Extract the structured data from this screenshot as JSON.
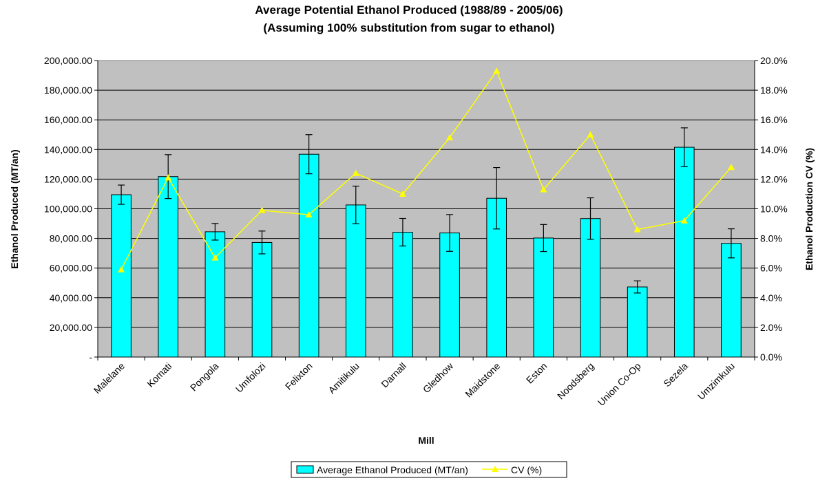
{
  "chart_data": {
    "type": "bar",
    "title": "Average Potential Ethanol Produced (1988/89 - 2005/06)",
    "subtitle": "(Assuming 100% substitution from sugar to ethanol)",
    "xlabel": "Mill",
    "ylabel": "Ethanol Produced (MT/an)",
    "y2label": "Ethanol Production CV (%)",
    "ylim": [
      0,
      200000
    ],
    "y2lim": [
      0,
      20
    ],
    "y_ticks": [
      "-",
      "20,000.00",
      "40,000.00",
      "60,000.00",
      "80,000.00",
      "100,000.00",
      "120,000.00",
      "140,000.00",
      "160,000.00",
      "180,000.00",
      "200,000.00"
    ],
    "y2_ticks": [
      "0.0%",
      "2.0%",
      "4.0%",
      "6.0%",
      "8.0%",
      "10.0%",
      "12.0%",
      "14.0%",
      "16.0%",
      "18.0%",
      "20.0%"
    ],
    "grid": true,
    "legend_position": "bottom",
    "categories": [
      "Malelane",
      "Komati",
      "Pongola",
      "Umfolozi",
      "Felixton",
      "Amitikulu",
      "Darnall",
      "Gledhow",
      "Maidstone",
      "Eston",
      "Noodsberg",
      "Union Co-Op",
      "Sezela",
      "Umzimkulu"
    ],
    "series": [
      {
        "name": "Average Ethanol Produced (MT/an)",
        "type": "bar",
        "axis": "left",
        "color": "#00FFFF",
        "values": [
          109500,
          121700,
          84500,
          77300,
          136800,
          102600,
          84200,
          83700,
          107100,
          80300,
          93400,
          47300,
          141500,
          76700
        ],
        "error": [
          6500,
          14800,
          5600,
          7700,
          13200,
          12700,
          9300,
          12400,
          20700,
          9100,
          14000,
          4100,
          13100,
          9800
        ]
      },
      {
        "name": "CV (%)",
        "type": "line",
        "axis": "right",
        "color": "#FFFF00",
        "values": [
          5.9,
          12.1,
          6.7,
          9.9,
          9.6,
          12.4,
          11.0,
          14.8,
          19.3,
          11.3,
          15.0,
          8.6,
          9.2,
          12.8
        ]
      }
    ]
  }
}
